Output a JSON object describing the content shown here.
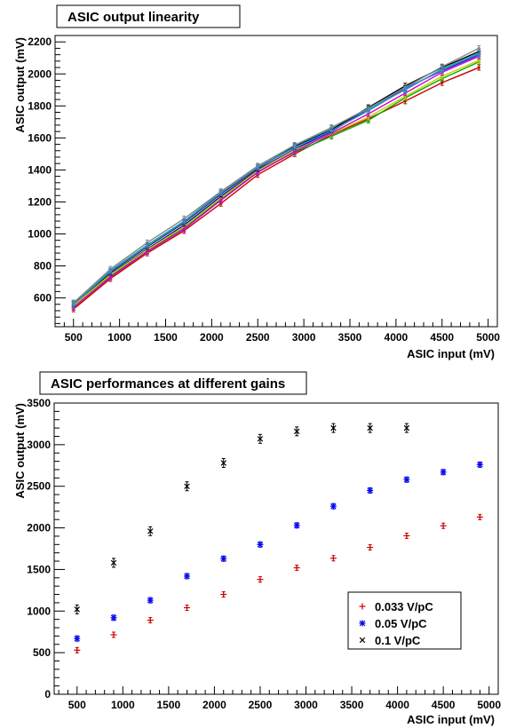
{
  "chart_data": [
    {
      "type": "line",
      "title": "ASIC output linearity",
      "xlabel": "ASIC input (mV)",
      "ylabel": "ASIC output (mV)",
      "xlim": [
        300,
        5100
      ],
      "ylim": [
        420,
        2240
      ],
      "xticks": [
        500,
        1000,
        1500,
        2000,
        2500,
        3000,
        3500,
        4000,
        4500,
        5000
      ],
      "yticks": [
        600,
        800,
        1000,
        1200,
        1400,
        1600,
        1800,
        2000,
        2200
      ],
      "x": [
        500,
        900,
        1300,
        1700,
        2100,
        2500,
        2900,
        3300,
        3700,
        4100,
        4500,
        4900
      ],
      "series": [
        {
          "color": "#cc0000",
          "values": [
            530,
            720,
            880,
            1020,
            1190,
            1370,
            1500,
            1620,
            1720,
            1830,
            1945,
            2040
          ]
        },
        {
          "color": "#00aa00",
          "values": [
            545,
            735,
            895,
            1040,
            1215,
            1390,
            1510,
            1610,
            1710,
            1850,
            1970,
            2075
          ]
        },
        {
          "color": "#0000cc",
          "values": [
            555,
            750,
            905,
            1055,
            1235,
            1400,
            1530,
            1640,
            1780,
            1910,
            2020,
            2120
          ]
        },
        {
          "color": "#cccc00",
          "values": [
            550,
            745,
            900,
            1045,
            1225,
            1395,
            1525,
            1625,
            1730,
            1860,
            1985,
            2085
          ]
        },
        {
          "color": "#cc00cc",
          "values": [
            540,
            730,
            890,
            1030,
            1210,
            1385,
            1515,
            1630,
            1750,
            1880,
            2010,
            2110
          ]
        },
        {
          "color": "#00aaaa",
          "values": [
            565,
            770,
            930,
            1080,
            1260,
            1420,
            1550,
            1660,
            1780,
            1900,
            2030,
            2130
          ]
        },
        {
          "color": "#000000",
          "values": [
            560,
            760,
            920,
            1070,
            1250,
            1410,
            1545,
            1650,
            1790,
            1925,
            2040,
            2140
          ]
        },
        {
          "color": "#888888",
          "values": [
            570,
            780,
            945,
            1095,
            1265,
            1425,
            1555,
            1665,
            1785,
            1915,
            2045,
            2160
          ]
        },
        {
          "color": "#4488cc",
          "values": [
            558,
            765,
            925,
            1075,
            1255,
            1415,
            1540,
            1645,
            1770,
            1905,
            2025,
            2125
          ]
        }
      ],
      "grid": false
    },
    {
      "type": "scatter",
      "title": "ASIC performances at different gains",
      "xlabel": "ASIC input (mV)",
      "ylabel": "ASIC output (mV)",
      "xlim": [
        250,
        5100
      ],
      "ylim": [
        0,
        3500
      ],
      "xticks": [
        500,
        1000,
        1500,
        2000,
        2500,
        3000,
        3500,
        4000,
        4500,
        5000
      ],
      "yticks": [
        0,
        500,
        1000,
        1500,
        2000,
        2500,
        3000,
        3500
      ],
      "legend_position": "bottom-right",
      "series": [
        {
          "name": "0.033 V/pC",
          "color": "#cc0000",
          "marker": "plus",
          "x": [
            500,
            900,
            1300,
            1700,
            2100,
            2500,
            2900,
            3300,
            3700,
            4100,
            4500,
            4900
          ],
          "values": [
            530,
            715,
            890,
            1040,
            1200,
            1380,
            1520,
            1635,
            1765,
            1905,
            2025,
            2130
          ]
        },
        {
          "name": "0.05 V/pC",
          "color": "#0000ee",
          "marker": "star",
          "x": [
            500,
            900,
            1300,
            1700,
            2100,
            2500,
            2900,
            3300,
            3700,
            4100,
            4500,
            4900
          ],
          "values": [
            670,
            920,
            1130,
            1420,
            1630,
            1800,
            2030,
            2260,
            2450,
            2580,
            2670,
            2760
          ]
        },
        {
          "name": "0.1 V/pC",
          "color": "#000000",
          "marker": "cross",
          "x": [
            500,
            900,
            1300,
            1700,
            2100,
            2500,
            2900,
            3300,
            3700,
            4100
          ],
          "values": [
            1020,
            1580,
            1960,
            2500,
            2780,
            3070,
            3160,
            3200,
            3200,
            3200
          ]
        }
      ],
      "grid": false
    }
  ]
}
